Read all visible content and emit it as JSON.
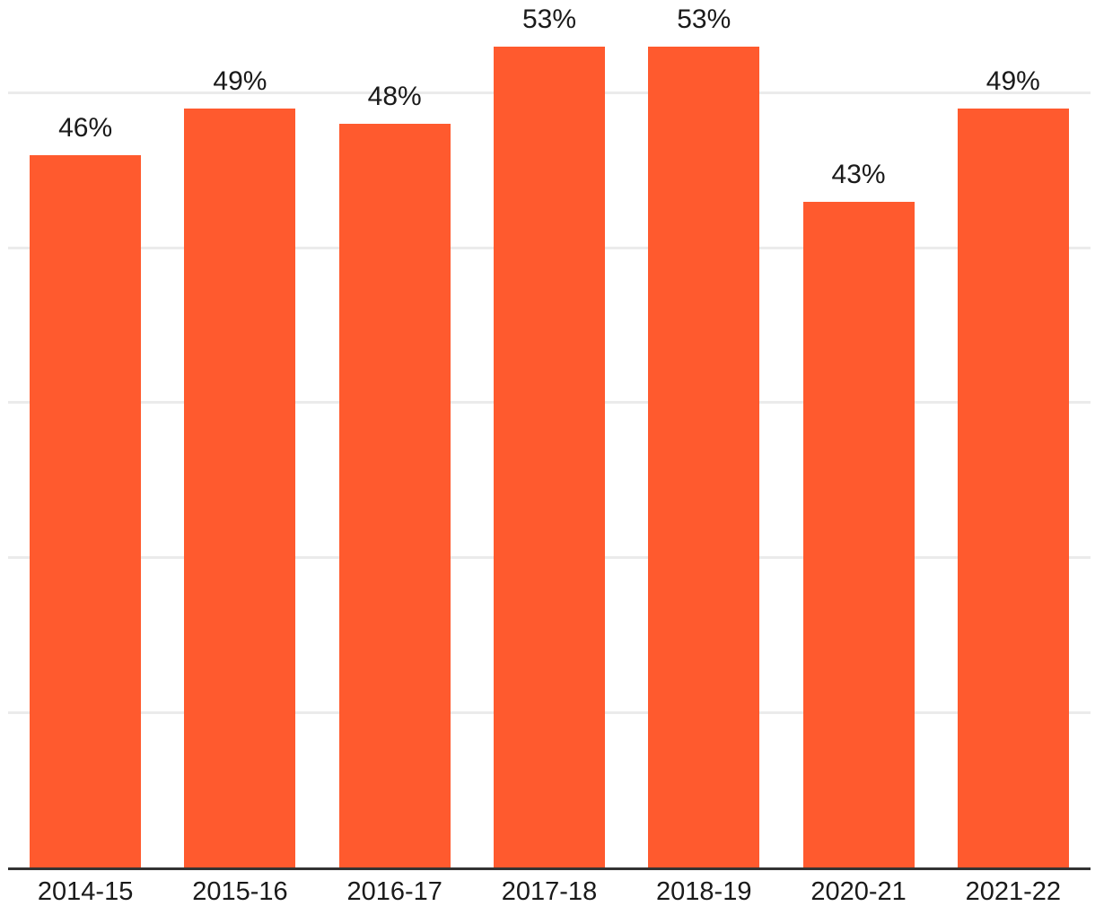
{
  "chart_data": {
    "type": "bar",
    "title": "",
    "xlabel": "",
    "ylabel": "",
    "categories": [
      "2014-15",
      "2015-16",
      "2016-17",
      "2017-18",
      "2018-19",
      "2020-21",
      "2021-22"
    ],
    "values": [
      46,
      49,
      48,
      53,
      53,
      43,
      49
    ],
    "value_labels": [
      "46%",
      "49%",
      "48%",
      "53%",
      "53%",
      "43%",
      "49%"
    ],
    "ylim": [
      0,
      56
    ],
    "gridline_values": [
      10,
      20,
      30,
      40,
      50
    ],
    "grid": "horizontal, no y-axis tick labels",
    "legend": null,
    "colors": {
      "bar": "#FF5A2E",
      "gridline": "#EBEBEB",
      "axis_line": "#333333",
      "label_text": "#1A1A1A",
      "background": "#FFFFFF"
    }
  }
}
